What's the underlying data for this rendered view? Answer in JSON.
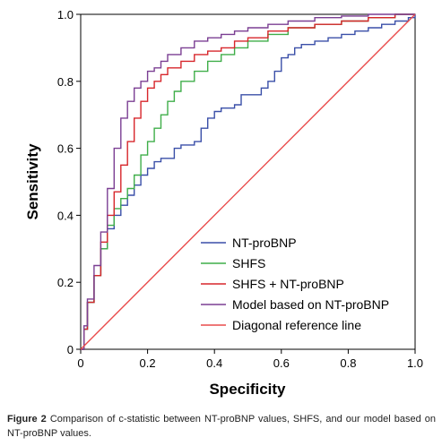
{
  "chart_data": {
    "type": "line",
    "title": "",
    "xlabel": "Specificity",
    "ylabel": "Sensitivity",
    "xlim": [
      0,
      1
    ],
    "ylim": [
      0,
      1
    ],
    "x_ticks": [
      "0",
      "0.2",
      "0.4",
      "0.6",
      "0.8",
      "1.0"
    ],
    "y_ticks": [
      "0",
      "0.2",
      "0.4",
      "0.6",
      "0.8",
      "1.0"
    ],
    "grid": false,
    "legend_position": "bottom-right",
    "series": [
      {
        "name": "NT-proBNP",
        "color": "#3a4fa8",
        "x": [
          0,
          0.01,
          0.02,
          0.04,
          0.06,
          0.08,
          0.1,
          0.12,
          0.14,
          0.16,
          0.18,
          0.2,
          0.22,
          0.24,
          0.26,
          0.28,
          0.3,
          0.32,
          0.34,
          0.36,
          0.38,
          0.4,
          0.42,
          0.44,
          0.46,
          0.48,
          0.5,
          0.52,
          0.54,
          0.56,
          0.58,
          0.6,
          0.62,
          0.64,
          0.66,
          0.7,
          0.74,
          0.78,
          0.82,
          0.86,
          0.9,
          0.94,
          0.98,
          1.0
        ],
        "y": [
          0,
          0.06,
          0.14,
          0.22,
          0.3,
          0.36,
          0.4,
          0.43,
          0.46,
          0.49,
          0.52,
          0.54,
          0.56,
          0.57,
          0.57,
          0.6,
          0.61,
          0.61,
          0.62,
          0.66,
          0.69,
          0.71,
          0.72,
          0.72,
          0.73,
          0.76,
          0.76,
          0.76,
          0.78,
          0.8,
          0.83,
          0.87,
          0.88,
          0.9,
          0.91,
          0.92,
          0.93,
          0.94,
          0.95,
          0.96,
          0.97,
          0.98,
          0.99,
          1.0
        ]
      },
      {
        "name": "SHFS",
        "color": "#3fae49",
        "x": [
          0,
          0.01,
          0.02,
          0.04,
          0.06,
          0.08,
          0.1,
          0.12,
          0.14,
          0.16,
          0.18,
          0.2,
          0.22,
          0.24,
          0.26,
          0.28,
          0.3,
          0.34,
          0.38,
          0.42,
          0.46,
          0.5,
          0.56,
          0.62,
          0.7,
          0.78,
          0.86,
          0.94,
          1.0
        ],
        "y": [
          0,
          0.06,
          0.14,
          0.22,
          0.3,
          0.37,
          0.42,
          0.45,
          0.48,
          0.52,
          0.58,
          0.62,
          0.66,
          0.7,
          0.74,
          0.77,
          0.8,
          0.83,
          0.86,
          0.88,
          0.9,
          0.92,
          0.94,
          0.96,
          0.97,
          0.98,
          0.99,
          1.0,
          1.0
        ]
      },
      {
        "name": "SHFS + NT-proBNP",
        "color": "#d7262b",
        "x": [
          0,
          0.01,
          0.02,
          0.04,
          0.06,
          0.08,
          0.1,
          0.12,
          0.14,
          0.16,
          0.18,
          0.2,
          0.22,
          0.24,
          0.26,
          0.3,
          0.34,
          0.38,
          0.42,
          0.46,
          0.5,
          0.56,
          0.62,
          0.7,
          0.78,
          0.86,
          0.94,
          1.0
        ],
        "y": [
          0,
          0.06,
          0.14,
          0.22,
          0.32,
          0.4,
          0.47,
          0.55,
          0.62,
          0.69,
          0.74,
          0.78,
          0.8,
          0.82,
          0.84,
          0.86,
          0.88,
          0.89,
          0.9,
          0.92,
          0.93,
          0.95,
          0.96,
          0.97,
          0.98,
          0.99,
          1.0,
          1.0
        ]
      },
      {
        "name": "Model based on NT-proBNP",
        "color": "#7b3f93",
        "x": [
          0,
          0.01,
          0.02,
          0.04,
          0.06,
          0.08,
          0.1,
          0.12,
          0.14,
          0.16,
          0.18,
          0.2,
          0.22,
          0.24,
          0.26,
          0.3,
          0.34,
          0.38,
          0.42,
          0.46,
          0.5,
          0.56,
          0.62,
          0.7,
          0.78,
          0.86,
          0.94,
          1.0
        ],
        "y": [
          0,
          0.07,
          0.15,
          0.25,
          0.35,
          0.48,
          0.6,
          0.69,
          0.74,
          0.78,
          0.8,
          0.83,
          0.84,
          0.86,
          0.88,
          0.9,
          0.92,
          0.93,
          0.94,
          0.95,
          0.96,
          0.97,
          0.98,
          0.99,
          0.995,
          1.0,
          1.0,
          1.0
        ]
      },
      {
        "name": "Diagonal reference line",
        "color": "#e94b4b",
        "x": [
          0,
          1.0
        ],
        "y": [
          0,
          1.0
        ]
      }
    ]
  },
  "caption": {
    "label": "Figure 2",
    "text": "Comparison of c-statistic between NT-proBNP values, SHFS, and our model based on NT-proBNP values."
  }
}
